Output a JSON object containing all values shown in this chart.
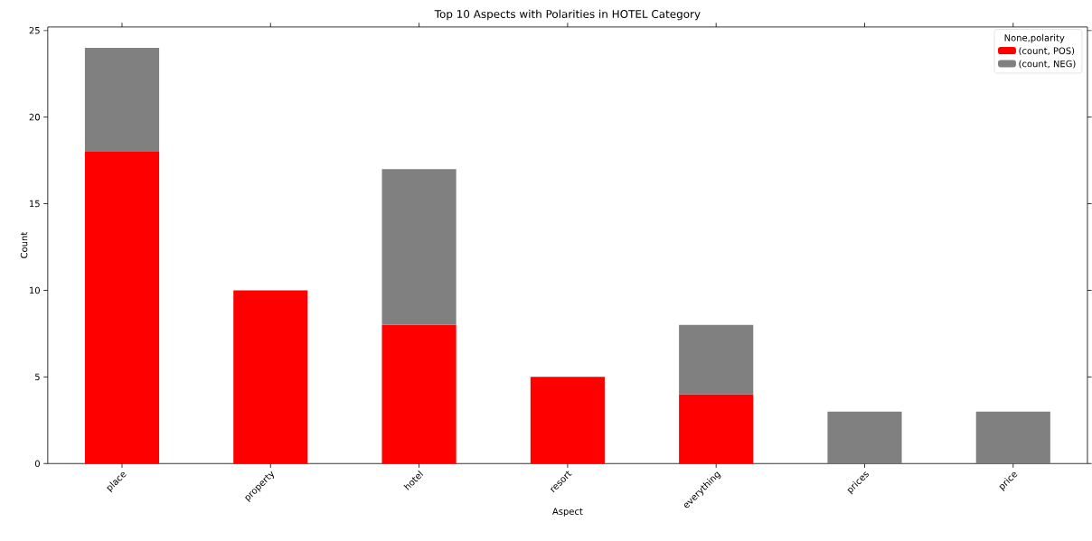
{
  "chart_data": {
    "type": "bar",
    "stacked": true,
    "title": "Top 10 Aspects with Polarities in HOTEL Category",
    "xlabel": "Aspect",
    "ylabel": "Count",
    "categories": [
      "place",
      "property",
      "hotel",
      "resort",
      "everything",
      "prices",
      "price"
    ],
    "series": [
      {
        "name": "(count, POS)",
        "color": "#ff0000",
        "values": [
          18,
          10,
          8,
          5,
          4,
          null,
          null
        ]
      },
      {
        "name": "(count, NEG)",
        "color": "#808080",
        "values": [
          6,
          null,
          9,
          null,
          4,
          3,
          3
        ]
      }
    ],
    "ylim": [
      0,
      25.2
    ],
    "yticks": [
      0,
      5,
      10,
      15,
      20,
      25
    ],
    "legend": "top right",
    "legend_title": "None,polarity",
    "grid": false
  }
}
